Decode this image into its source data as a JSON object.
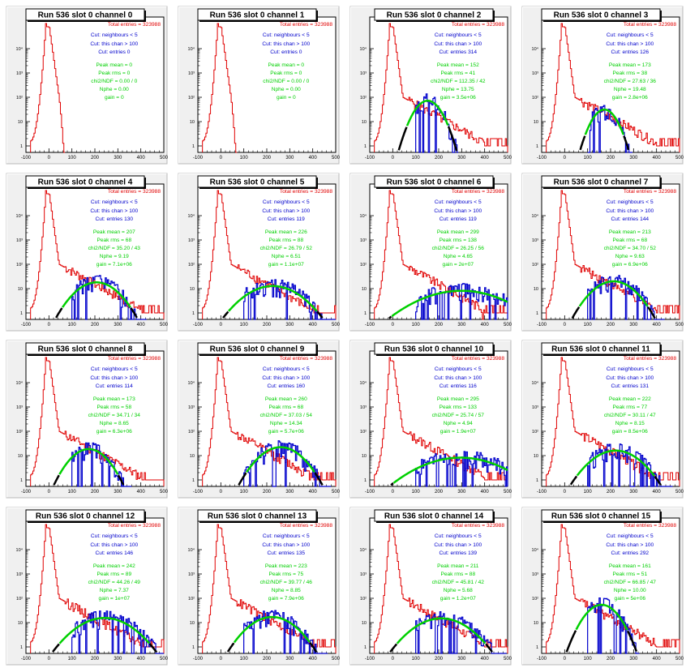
{
  "colors": {
    "total": "#e00000",
    "cut": "#0000cc",
    "fit": "#00d000",
    "fit_tail": "#000000",
    "title_box_shadow": "#000000",
    "pad_bg": "#f0f0f0",
    "frame_bg": "#ffffff"
  },
  "chart_data": [
    {
      "type": "histogram",
      "title": "Run 536 slot 0 channel 0",
      "stats": [
        "Total entries = 323988",
        "Cut: neighbours < 5",
        "Cut: this chan > 100",
        "Cut: entries 0",
        "Peak mean = 0",
        "Peak rms = 0",
        "chi2/NDF = 0.00 / 0",
        "Nphe = 0.00",
        "gain = 0"
      ],
      "x_ticks": [
        "-100",
        "0",
        "100",
        "200",
        "300",
        "400",
        "500"
      ],
      "y_ticks": [
        "1",
        "10",
        "10²",
        "10³",
        "10⁴"
      ],
      "xlim": [
        -100,
        500
      ],
      "ylog": true,
      "has_fit": false
    },
    {
      "type": "histogram",
      "title": "Run 536 slot 0 channel 1",
      "stats": [
        "Total entries = 323988",
        "Cut: neighbours < 5",
        "Cut: this chan > 100",
        "Cut: entries 0",
        "Peak mean = 0",
        "Peak rms = 0",
        "chi2/NDF = 0.00 / 0",
        "Nphe = 0.00",
        "gain = 0"
      ],
      "x_ticks": [
        "-100",
        "0",
        "100",
        "200",
        "300",
        "400",
        "500"
      ],
      "y_ticks": [
        "1",
        "10",
        "10²",
        "10³",
        "10⁴"
      ],
      "xlim": [
        -100,
        500
      ],
      "ylog": true,
      "has_fit": false
    },
    {
      "type": "histogram",
      "title": "Run 536 slot 0 channel 2",
      "stats": [
        "Total entries = 323988",
        "Cut: neighbours < 5",
        "Cut: this chan > 100",
        "Cut: entries 314",
        "Peak mean = 152",
        "Peak rms = 41",
        "chi2/NDF = 112.35 / 42",
        "Nphe = 13.75",
        "gain = 3.5e+06"
      ],
      "x_ticks": [
        "-100",
        "0",
        "100",
        "200",
        "300",
        "400",
        "500"
      ],
      "y_ticks": [
        "1",
        "10",
        "10²",
        "10³",
        "10⁴"
      ],
      "xlim": [
        -100,
        500
      ],
      "ylog": true,
      "has_fit": true
    },
    {
      "type": "histogram",
      "title": "Run 536 slot 0 channel 3",
      "stats": [
        "Total entries = 323988",
        "Cut: neighbours < 5",
        "Cut: this chan > 100",
        "Cut: entries 126",
        "Peak mean = 173",
        "Peak rms = 38",
        "chi2/NDF = 27.63 / 36",
        "Nphe = 19.48",
        "gain = 2.8e+06"
      ],
      "x_ticks": [
        "-100",
        "0",
        "100",
        "200",
        "300",
        "400",
        "500"
      ],
      "y_ticks": [
        "1",
        "10",
        "10²",
        "10³",
        "10⁴"
      ],
      "xlim": [
        -100,
        500
      ],
      "ylog": true,
      "has_fit": true
    },
    {
      "type": "histogram",
      "title": "Run 536 slot 0 channel 4",
      "stats": [
        "Total entries = 323988",
        "Cut: neighbours < 5",
        "Cut: this chan > 100",
        "Cut: entries 130",
        "Peak mean = 207",
        "Peak rms = 68",
        "chi2/NDF = 35.20 / 43",
        "Nphe = 9.19",
        "gain = 7.1e+06"
      ],
      "x_ticks": [
        "-100",
        "0",
        "100",
        "200",
        "300",
        "400",
        "500"
      ],
      "y_ticks": [
        "1",
        "10",
        "10²",
        "10³",
        "10⁴"
      ],
      "xlim": [
        -100,
        500
      ],
      "ylog": true,
      "has_fit": true
    },
    {
      "type": "histogram",
      "title": "Run 536 slot 0 channel 5",
      "stats": [
        "Total entries = 323988",
        "Cut: neighbours < 5",
        "Cut: this chan > 100",
        "Cut: entries 119",
        "Peak mean = 226",
        "Peak rms = 88",
        "chi2/NDF = 26.79 / 52",
        "Nphe = 6.51",
        "gain = 1.1e+07"
      ],
      "x_ticks": [
        "-100",
        "0",
        "100",
        "200",
        "300",
        "400",
        "500"
      ],
      "y_ticks": [
        "1",
        "10",
        "10²",
        "10³",
        "10⁴"
      ],
      "xlim": [
        -100,
        500
      ],
      "ylog": true,
      "has_fit": true
    },
    {
      "type": "histogram",
      "title": "Run 536 slot 0 channel 6",
      "stats": [
        "Total entries = 323988",
        "Cut: neighbours < 5",
        "Cut: this chan > 100",
        "Cut: entries 119",
        "Peak mean = 299",
        "Peak rms = 138",
        "chi2/NDF = 26.25 / 56",
        "Nphe = 4.65",
        "gain = 2e+07"
      ],
      "x_ticks": [
        "-100",
        "0",
        "100",
        "200",
        "300",
        "400",
        "500"
      ],
      "y_ticks": [
        "1",
        "10",
        "10²",
        "10³",
        "10⁴"
      ],
      "xlim": [
        -100,
        500
      ],
      "ylog": true,
      "has_fit": true
    },
    {
      "type": "histogram",
      "title": "Run 536 slot 0 channel 7",
      "stats": [
        "Total entries = 323988",
        "Cut: neighbours < 5",
        "Cut: this chan > 100",
        "Cut: entries 144",
        "Peak mean = 213",
        "Peak rms = 68",
        "chi2/NDF = 34.70 / 52",
        "Nphe = 9.63",
        "gain = 6.9e+06"
      ],
      "x_ticks": [
        "-100",
        "0",
        "100",
        "200",
        "300",
        "400",
        "500"
      ],
      "y_ticks": [
        "1",
        "10",
        "10²",
        "10³",
        "10⁴"
      ],
      "xlim": [
        -100,
        500
      ],
      "ylog": true,
      "has_fit": true
    },
    {
      "type": "histogram",
      "title": "Run 536 slot 0 channel 8",
      "stats": [
        "Total entries = 323988",
        "Cut: neighbours < 5",
        "Cut: this chan > 100",
        "Cut: entries 114",
        "Peak mean = 173",
        "Peak rms = 58",
        "chi2/NDF = 34.71 / 34",
        "Nphe = 8.65",
        "gain = 6.3e+06"
      ],
      "x_ticks": [
        "-100",
        "0",
        "100",
        "200",
        "300",
        "400",
        "500"
      ],
      "y_ticks": [
        "1",
        "10",
        "10²",
        "10³",
        "10⁴"
      ],
      "xlim": [
        -100,
        500
      ],
      "ylog": true,
      "has_fit": true
    },
    {
      "type": "histogram",
      "title": "Run 536 slot 0 channel 9",
      "stats": [
        "Total entries = 323988",
        "Cut: neighbours < 5",
        "Cut: this chan > 100",
        "Cut: entries 160",
        "Peak mean = 260",
        "Peak rms = 68",
        "chi2/NDF = 37.03 / 54",
        "Nphe = 14.34",
        "gain = 5.7e+06"
      ],
      "x_ticks": [
        "-100",
        "0",
        "100",
        "200",
        "300",
        "400",
        "500"
      ],
      "y_ticks": [
        "1",
        "10",
        "10²",
        "10³",
        "10⁴"
      ],
      "xlim": [
        -100,
        500
      ],
      "ylog": true,
      "has_fit": true
    },
    {
      "type": "histogram",
      "title": "Run 536 slot 0 channel 10",
      "stats": [
        "Total entries = 323988",
        "Cut: neighbours < 5",
        "Cut: this chan > 100",
        "Cut: entries 116",
        "Peak mean = 295",
        "Peak rms = 133",
        "chi2/NDF = 25.74 / 57",
        "Nphe = 4.94",
        "gain = 1.9e+07"
      ],
      "x_ticks": [
        "-100",
        "0",
        "100",
        "200",
        "300",
        "400",
        "500"
      ],
      "y_ticks": [
        "1",
        "10",
        "10²",
        "10³",
        "10⁴"
      ],
      "xlim": [
        -100,
        500
      ],
      "ylog": true,
      "has_fit": true
    },
    {
      "type": "histogram",
      "title": "Run 536 slot 0 channel 11",
      "stats": [
        "Total entries = 323988",
        "Cut: neighbours < 5",
        "Cut: this chan > 100",
        "Cut: entries 131",
        "Peak mean = 222",
        "Peak rms = 77",
        "chi2/NDF = 30.11 / 47",
        "Nphe = 8.15",
        "gain = 8.5e+06"
      ],
      "x_ticks": [
        "-100",
        "0",
        "100",
        "200",
        "300",
        "400",
        "500"
      ],
      "y_ticks": [
        "1",
        "10",
        "10²",
        "10³",
        "10⁴"
      ],
      "xlim": [
        -100,
        500
      ],
      "ylog": true,
      "has_fit": true
    },
    {
      "type": "histogram",
      "title": "Run 536 slot 0 channel 12",
      "stats": [
        "Total entries = 323988",
        "Cut: neighbours < 5",
        "Cut: this chan > 100",
        "Cut: entries 146",
        "Peak mean = 242",
        "Peak rms = 89",
        "chi2/NDF = 44.26 / 49",
        "Nphe = 7.37",
        "gain = 1e+07"
      ],
      "x_ticks": [
        "-100",
        "0",
        "100",
        "200",
        "300",
        "400",
        "500"
      ],
      "y_ticks": [
        "1",
        "10",
        "10²",
        "10³",
        "10⁴"
      ],
      "xlim": [
        -100,
        500
      ],
      "ylog": true,
      "has_fit": true
    },
    {
      "type": "histogram",
      "title": "Run 536 slot 0 channel 13",
      "stats": [
        "Total entries = 323988",
        "Cut: neighbours < 5",
        "Cut: this chan > 100",
        "Cut: entries 135",
        "Peak mean = 223",
        "Peak rms = 75",
        "chi2/NDF = 39.77 / 46",
        "Nphe = 8.85",
        "gain = 7.9e+06"
      ],
      "x_ticks": [
        "-100",
        "0",
        "100",
        "200",
        "300",
        "400",
        "500"
      ],
      "y_ticks": [
        "1",
        "10",
        "10²",
        "10³",
        "10⁴"
      ],
      "xlim": [
        -100,
        500
      ],
      "ylog": true,
      "has_fit": true
    },
    {
      "type": "histogram",
      "title": "Run 536 slot 0 channel 14",
      "stats": [
        "Total entries = 323988",
        "Cut: neighbours < 5",
        "Cut: this chan > 100",
        "Cut: entries 139",
        "Peak mean = 211",
        "Peak rms = 88",
        "chi2/NDF = 45.81 / 42",
        "Nphe = 5.68",
        "gain = 1.2e+07"
      ],
      "x_ticks": [
        "-100",
        "0",
        "100",
        "200",
        "300",
        "400",
        "500"
      ],
      "y_ticks": [
        "1",
        "10",
        "10²",
        "10³",
        "10⁴"
      ],
      "xlim": [
        -100,
        500
      ],
      "ylog": true,
      "has_fit": true
    },
    {
      "type": "histogram",
      "title": "Run 536 slot 0 channel 15",
      "stats": [
        "Total entries = 323988",
        "Cut: neighbours < 5",
        "Cut: this chan > 100",
        "Cut: entries 292",
        "Peak mean = 161",
        "Peak rms = 51",
        "chi2/NDF = 66.85 / 47",
        "Nphe = 10.00",
        "gain = 5e+06"
      ],
      "x_ticks": [
        "-100",
        "0",
        "100",
        "200",
        "300",
        "400",
        "500"
      ],
      "y_ticks": [
        "1",
        "10",
        "10²",
        "10³",
        "10⁴"
      ],
      "xlim": [
        -100,
        500
      ],
      "ylog": true,
      "has_fit": true
    }
  ]
}
